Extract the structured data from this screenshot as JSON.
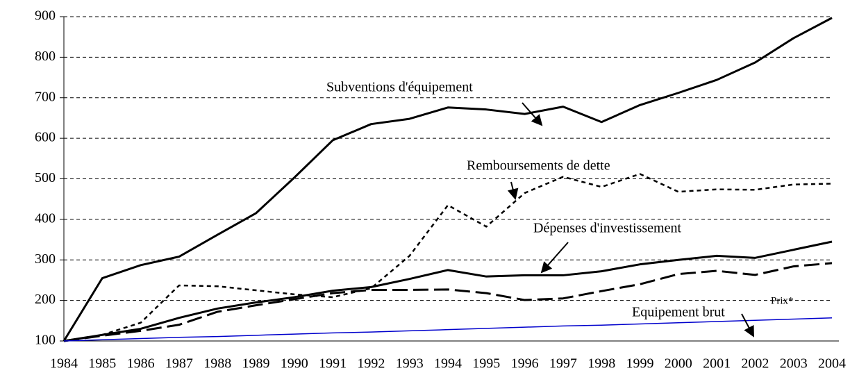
{
  "chart_data": {
    "type": "line",
    "categories": [
      "1984",
      "1985",
      "1986",
      "1987",
      "1988",
      "1989",
      "1990",
      "1991",
      "1992",
      "1993",
      "1994",
      "1995",
      "1996",
      "1997",
      "1998",
      "1999",
      "2000",
      "2001",
      "2002",
      "2003",
      "2004"
    ],
    "series": [
      {
        "name": "Subventions d'équipement",
        "color": "#000000",
        "dash": "solid",
        "values": [
          100,
          255,
          287,
          308,
          362,
          415,
          503,
          595,
          635,
          648,
          676,
          671,
          660,
          678,
          640,
          682,
          712,
          744,
          787,
          847,
          897
        ]
      },
      {
        "name": "Remboursements de dette",
        "color": "#000000",
        "dash": "dotted",
        "values": [
          100,
          115,
          145,
          237,
          235,
          225,
          215,
          208,
          230,
          310,
          435,
          382,
          465,
          505,
          480,
          512,
          468,
          474,
          473,
          486,
          488
        ]
      },
      {
        "name": "Dépenses d'investissement",
        "color": "#000000",
        "dash": "solid",
        "values": [
          100,
          115,
          130,
          157,
          180,
          195,
          208,
          224,
          233,
          253,
          275,
          259,
          262,
          262,
          272,
          289,
          300,
          310,
          305,
          325,
          345
        ]
      },
      {
        "name": "Equipement brut",
        "color": "#000000",
        "dash": "dashed",
        "values": [
          100,
          113,
          125,
          140,
          172,
          188,
          203,
          218,
          226,
          226,
          227,
          218,
          201,
          205,
          223,
          240,
          265,
          273,
          263,
          284,
          292
        ]
      },
      {
        "name": "Prix*",
        "color": "#0000cc",
        "dash": "thin",
        "values": [
          100,
          103,
          106,
          109,
          111,
          114,
          117,
          120,
          122,
          125,
          128,
          131,
          134,
          137,
          139,
          142,
          145,
          148,
          151,
          154,
          157
        ]
      }
    ],
    "ylim": [
      100,
      900
    ],
    "yticks": [
      100,
      200,
      300,
      400,
      500,
      600,
      700,
      800,
      900
    ],
    "grid": true
  }
}
